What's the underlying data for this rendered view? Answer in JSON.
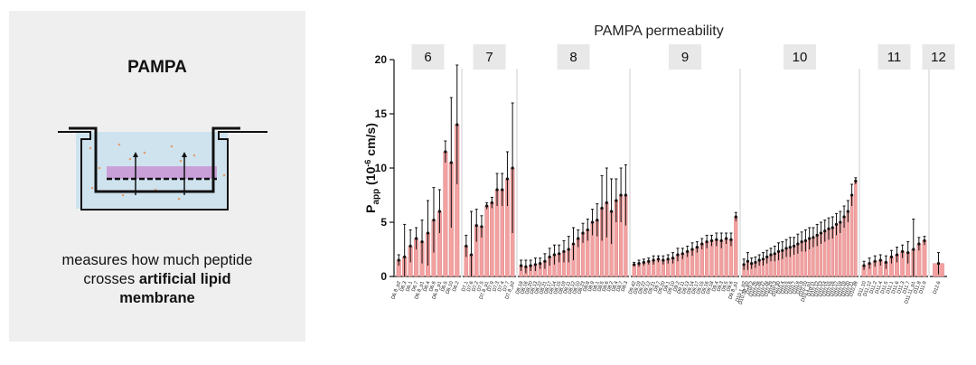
{
  "panel": {
    "title": "PAMPA",
    "caption_line1": "measures how much peptide",
    "caption_line2_pre": "crosses ",
    "caption_line2_bold": "artificial lipid",
    "caption_line3_bold": "membrane"
  },
  "chart_data": {
    "type": "bar",
    "title": "PAMPA permeability",
    "ylabel_main": "P",
    "ylabel_sub": "app",
    "ylabel_unit_pre": " (10",
    "ylabel_exp": "-6",
    "ylabel_unit_post": " cm/s)",
    "ylim": [
      0,
      20
    ],
    "yticks": [
      "0",
      "5",
      "10",
      "15",
      "20"
    ],
    "bar_color": "#f2a0a0",
    "bar_outline": "#d98080",
    "groups": [
      {
        "label": "6",
        "categories": [
          "D6.8_p2",
          "D6.3",
          "D6.1",
          "D6.7",
          "D6.8_p1",
          "D6.4",
          "D6.6",
          "D6.9_p1",
          "D6.5",
          "D6.10",
          "D6.2"
        ],
        "values": [
          1.5,
          1.8,
          2.8,
          3.5,
          3.2,
          4.0,
          5.2,
          6.0,
          11.5,
          10.5,
          14.0
        ],
        "errors": [
          0.5,
          3.0,
          1.5,
          1.0,
          2.0,
          3.0,
          3.0,
          2.0,
          1.0,
          6.0,
          5.5
        ]
      },
      {
        "label": "7",
        "categories": [
          "D7.1",
          "D7.6",
          "D7.2",
          "D7.5",
          "D7.8_p1",
          "D7.9",
          "D7.3",
          "D7.4",
          "D7.7",
          "D7.8_p2"
        ],
        "values": [
          2.8,
          2.0,
          4.7,
          4.6,
          6.5,
          6.8,
          8.0,
          8.0,
          9.0,
          10.0
        ],
        "errors": [
          1.0,
          4.0,
          1.5,
          1.0,
          0.3,
          0.5,
          1.5,
          1.5,
          2.5,
          6.0
        ]
      },
      {
        "label": "8",
        "categories": [
          "D8.18",
          "D8.16",
          "D8.20",
          "D8.13",
          "D8.22",
          "D8.21",
          "D8.17",
          "D8.14",
          "D8.15",
          "D8.19",
          "D8.11",
          "D8.12",
          "D8.10",
          "D8.23",
          "D8.8",
          "D8.9",
          "D8.1",
          "D8.5",
          "D8.6",
          "D8.2",
          "D8.4",
          "D8.7",
          "D8.3"
        ],
        "values": [
          1.0,
          0.9,
          1.0,
          1.1,
          1.2,
          1.4,
          1.8,
          2.0,
          2.1,
          2.3,
          2.5,
          3.0,
          3.5,
          4.0,
          4.3,
          5.0,
          5.2,
          6.3,
          6.8,
          6.0,
          7.0,
          7.5,
          7.5
        ],
        "errors": [
          0.5,
          0.6,
          0.5,
          0.6,
          0.5,
          0.7,
          0.8,
          0.9,
          0.8,
          1.0,
          1.2,
          1.5,
          0.8,
          0.9,
          1.0,
          1.2,
          1.5,
          3.0,
          3.2,
          3.0,
          2.0,
          2.5,
          2.8
        ]
      },
      {
        "label": "9",
        "categories": [
          "D9.42",
          "D9.19",
          "D9.22",
          "D9.12",
          "D9.21",
          "D9.7",
          "D9.20",
          "D9.1",
          "D9.10",
          "D9.2",
          "D9.11",
          "D9.13",
          "D9.14",
          "D9.17",
          "D9.15",
          "D9.16",
          "D9.18",
          "D9.4",
          "D9.3",
          "D9.5",
          "D9.6",
          "D9.8_p1"
        ],
        "values": [
          1.1,
          1.2,
          1.3,
          1.4,
          1.5,
          1.6,
          1.5,
          1.6,
          1.7,
          2.0,
          2.1,
          2.3,
          2.5,
          2.7,
          3.0,
          3.2,
          3.3,
          3.4,
          3.3,
          3.5,
          3.4,
          5.5
        ],
        "errors": [
          0.2,
          0.3,
          0.3,
          0.3,
          0.4,
          0.3,
          0.4,
          0.4,
          0.5,
          0.6,
          0.5,
          0.5,
          0.6,
          0.5,
          0.5,
          0.6,
          0.5,
          0.6,
          0.7,
          0.5,
          0.6,
          0.4
        ]
      },
      {
        "label": "10",
        "categories": [
          "D10.1_p2",
          "D10.38_p2",
          "D10.2",
          "D10.25",
          "D10.26",
          "D10.27",
          "D10.28",
          "D10.29",
          "D10.3",
          "D10.30",
          "D10.4",
          "D10.5",
          "D10.6",
          "D10.7",
          "D10.8",
          "D10.9",
          "D10.10",
          "D10.1_p1",
          "D10.11",
          "D10.12",
          "D10.13",
          "D10.14",
          "D10.15",
          "D10.16",
          "D10.17",
          "D10.18",
          "D10.19",
          "D10.20",
          "D10.21",
          "D10.38"
        ],
        "values": [
          1.1,
          1.4,
          1.2,
          1.3,
          1.5,
          1.6,
          1.8,
          2.0,
          2.1,
          2.3,
          2.4,
          2.6,
          2.7,
          2.8,
          3.0,
          3.2,
          3.3,
          3.5,
          3.6,
          3.8,
          4.0,
          4.2,
          4.4,
          4.5,
          4.8,
          5.0,
          5.5,
          6.0,
          7.5,
          8.8
        ],
        "errors": [
          0.5,
          0.8,
          0.5,
          0.5,
          0.5,
          0.6,
          0.6,
          0.6,
          0.7,
          0.8,
          0.8,
          0.8,
          0.9,
          0.8,
          0.9,
          0.9,
          1.0,
          1.0,
          0.9,
          1.0,
          1.0,
          1.0,
          1.0,
          1.0,
          1.0,
          1.0,
          1.0,
          1.0,
          1.0,
          0.3
        ]
      },
      {
        "label": "11",
        "categories": [
          "D11.10",
          "D11.12",
          "D11.2",
          "D11.4",
          "D11.5",
          "D11.1",
          "D11.6",
          "D11.3",
          "D11.7",
          "D11.11_p1",
          "D11.8",
          "D11.9"
        ],
        "values": [
          1.0,
          1.2,
          1.4,
          1.5,
          1.3,
          1.8,
          2.0,
          2.3,
          2.2,
          2.5,
          3.0,
          3.3
        ],
        "errors": [
          0.4,
          0.5,
          0.5,
          0.5,
          0.6,
          0.6,
          0.7,
          0.6,
          1.0,
          2.8,
          0.6,
          0.4
        ]
      },
      {
        "label": "12",
        "categories": [
          "D12.6"
        ],
        "values": [
          1.2
        ],
        "errors": [
          1.0
        ]
      }
    ]
  }
}
